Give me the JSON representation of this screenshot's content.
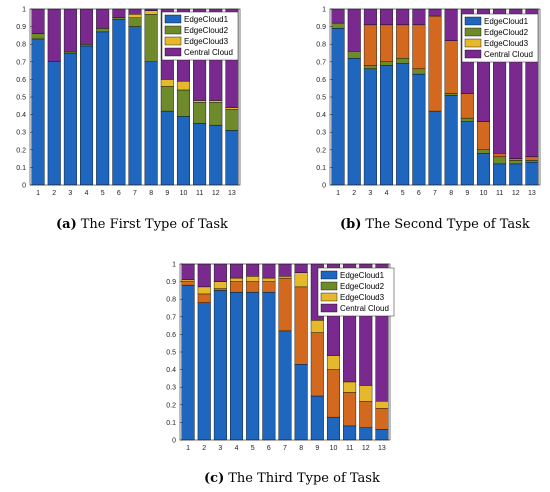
{
  "colors": {
    "EdgeCloud1": "#1f66bf",
    "EdgeCloud2": "#6f8a2a",
    "EdgeCloud3": "#e6b82c",
    "EdgeCloud2_alt": "#d2691e",
    "Central Cloud": "#7a2a8e"
  },
  "chart_data": [
    {
      "type": "bar",
      "stacked": true,
      "caption_tag": "(a)",
      "caption_text": "The First Type of Task",
      "categories": [
        "1",
        "2",
        "3",
        "4",
        "5",
        "6",
        "7",
        "8",
        "9",
        "10",
        "11",
        "12",
        "13"
      ],
      "yticks": [
        "0",
        "0.1",
        "0.2",
        "0.3",
        "0.4",
        "0.5",
        "0.6",
        "0.7",
        "0.8",
        "0.9",
        "1"
      ],
      "ylim": [
        0,
        1
      ],
      "legend_position": "top-right",
      "series": [
        {
          "name": "EdgeCloud1",
          "values": [
            0.83,
            0.7,
            0.75,
            0.79,
            0.87,
            0.94,
            0.9,
            0.7,
            0.42,
            0.39,
            0.35,
            0.34,
            0.31
          ]
        },
        {
          "name": "EdgeCloud2",
          "values": [
            0.03,
            0.0,
            0.01,
            0.01,
            0.02,
            0.01,
            0.05,
            0.27,
            0.14,
            0.15,
            0.12,
            0.13,
            0.12
          ]
        },
        {
          "name": "EdgeCloud3",
          "values": [
            0.0,
            0.0,
            0.0,
            0.0,
            0.0,
            0.0,
            0.02,
            0.02,
            0.04,
            0.05,
            0.01,
            0.01,
            0.01
          ]
        },
        {
          "name": "Central Cloud",
          "values": [
            0.14,
            0.3,
            0.24,
            0.2,
            0.11,
            0.05,
            0.03,
            0.01,
            0.4,
            0.41,
            0.52,
            0.52,
            0.56
          ]
        }
      ]
    },
    {
      "type": "bar",
      "stacked": true,
      "caption_tag": "(b)",
      "caption_text": "The Second Type of Task",
      "categories": [
        "1",
        "2",
        "3",
        "4",
        "5",
        "6",
        "7",
        "8",
        "9",
        "10",
        "11",
        "12",
        "13"
      ],
      "yticks": [
        "0",
        "0.1",
        "0.2",
        "0.3",
        "0.4",
        "0.5",
        "0.6",
        "0.7",
        "0.8",
        "0.9",
        "1"
      ],
      "ylim": [
        0,
        1
      ],
      "legend_position": "top-right",
      "series": [
        {
          "name": "EdgeCloud1",
          "values": [
            0.89,
            0.72,
            0.66,
            0.68,
            0.69,
            0.63,
            0.42,
            0.51,
            0.36,
            0.18,
            0.12,
            0.12,
            0.13
          ]
        },
        {
          "name": "EdgeCloud2",
          "values": [
            0.03,
            0.04,
            0.02,
            0.02,
            0.03,
            0.03,
            0.0,
            0.01,
            0.02,
            0.02,
            0.04,
            0.02,
            0.01
          ]
        },
        {
          "name": "EdgeCloud3",
          "values": [
            0.0,
            0.0,
            0.23,
            0.21,
            0.19,
            0.25,
            0.54,
            0.3,
            0.14,
            0.16,
            0.02,
            0.01,
            0.02
          ]
        },
        {
          "name": "Central Cloud",
          "values": [
            0.08,
            0.24,
            0.09,
            0.09,
            0.09,
            0.09,
            0.04,
            0.18,
            0.48,
            0.64,
            0.82,
            0.85,
            0.84
          ]
        }
      ]
    },
    {
      "type": "bar",
      "stacked": true,
      "caption_tag": "(c)",
      "caption_text": "The Third Type of Task",
      "categories": [
        "1",
        "2",
        "3",
        "4",
        "5",
        "6",
        "7",
        "8",
        "9",
        "10",
        "11",
        "12",
        "13"
      ],
      "yticks": [
        "0",
        "0.1",
        "0.2",
        "0.3",
        "0.4",
        "0.5",
        "0.6",
        "0.7",
        "0.8",
        "0.9",
        "1"
      ],
      "ylim": [
        0,
        1
      ],
      "legend_position": "top-right",
      "series": [
        {
          "name": "EdgeCloud1",
          "values": [
            0.88,
            0.78,
            0.85,
            0.84,
            0.84,
            0.84,
            0.62,
            0.43,
            0.25,
            0.13,
            0.08,
            0.07,
            0.06
          ]
        },
        {
          "name": "EdgeCloud2",
          "values": [
            0.02,
            0.05,
            0.01,
            0.06,
            0.06,
            0.06,
            0.3,
            0.44,
            0.36,
            0.27,
            0.19,
            0.15,
            0.12
          ]
        },
        {
          "name": "EdgeCloud3",
          "values": [
            0.01,
            0.04,
            0.04,
            0.02,
            0.03,
            0.02,
            0.01,
            0.08,
            0.07,
            0.08,
            0.06,
            0.09,
            0.04
          ]
        },
        {
          "name": "Central Cloud",
          "values": [
            0.09,
            0.13,
            0.1,
            0.08,
            0.07,
            0.08,
            0.07,
            0.05,
            0.32,
            0.52,
            0.67,
            0.69,
            0.78
          ]
        }
      ]
    }
  ]
}
